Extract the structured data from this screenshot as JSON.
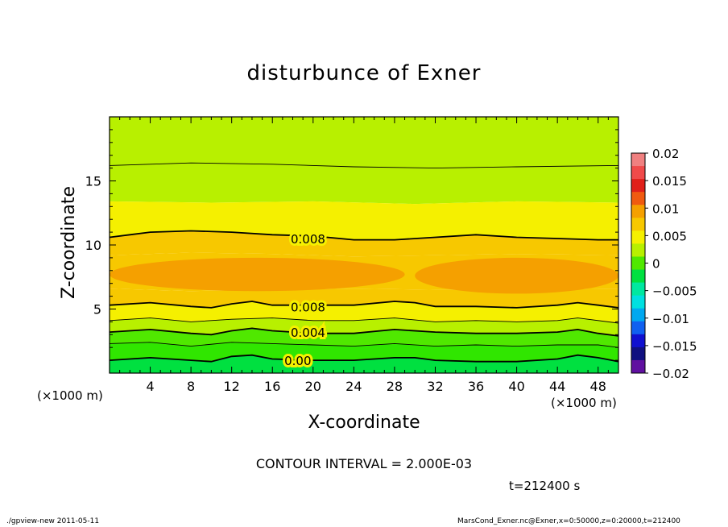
{
  "chart_data": {
    "type": "heatmap",
    "title": "disturbunce of Exner",
    "xlabel": "X-coordinate",
    "ylabel": "Z-coordinate",
    "x_unit": "(×1000 m)",
    "x_range": [
      0,
      50
    ],
    "z_range": [
      0,
      20
    ],
    "x_ticks": [
      "4",
      "8",
      "12",
      "16",
      "20",
      "24",
      "28",
      "32",
      "36",
      "40",
      "44",
      "48"
    ],
    "z_ticks": [
      "5",
      "10",
      "15"
    ],
    "contour_labels": [
      "0.008",
      "0.008",
      "0.004",
      "0.00"
    ],
    "contour_interval_text": "CONTOUR INTERVAL = 2.000E-03",
    "time_text": "t=212400 s",
    "colorbar": {
      "range": [
        -0.02,
        0.02
      ],
      "labels": [
        "0.02",
        "0.015",
        "0.01",
        "0.005",
        "0",
        "−0.005",
        "−0.01",
        "−0.015",
        "−0.02"
      ],
      "colors": [
        "#f08080",
        "#f04a4a",
        "#e0201a",
        "#f05a10",
        "#f5a000",
        "#f7c800",
        "#f5f000",
        "#b8f000",
        "#50e800",
        "#00e040",
        "#00e8a0",
        "#00e0e0",
        "#00a8f0",
        "#1060f0",
        "#1010d0",
        "#101080",
        "#6010a0"
      ],
      "field_colors": {
        "0.012": "#f5a000",
        "0.010": "#f7c800",
        "0.008": "#f5f000",
        "0.006": "#b8f000",
        "0.004": "#50e800",
        "0.002": "#30e600",
        "0.000": "#00e040"
      }
    }
  },
  "footer": {
    "left": "./gpview-new  2011-05-11",
    "right": "MarsCond_Exner.nc@Exner,x=0:50000,z=0:20000,t=212400"
  }
}
